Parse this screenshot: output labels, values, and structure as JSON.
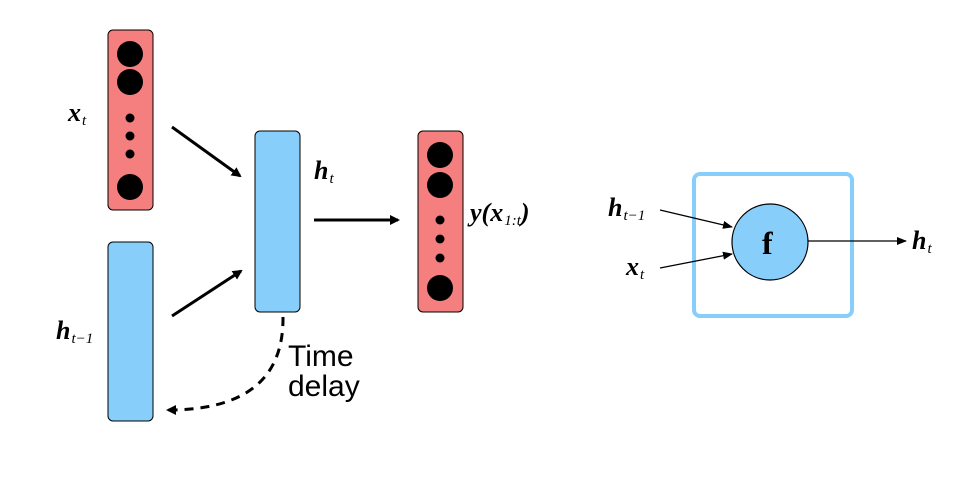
{
  "labels": {
    "x_t": {
      "main": "x",
      "sub": "t"
    },
    "h_t_minus_1": {
      "main": "h",
      "sub": "t−1"
    },
    "h_t": {
      "main": "h",
      "sub": "t"
    },
    "y_output": {
      "prefix": "y(",
      "main": "x",
      "sub": "1:t",
      "suffix": ")"
    },
    "time_delay": "Time\ndelay",
    "cell_h_t_minus_1": {
      "main": "h",
      "sub": "t−1"
    },
    "cell_x_t": {
      "main": "x",
      "sub": "t"
    },
    "cell_h_t": {
      "main": "h",
      "sub": "t"
    },
    "function": "f"
  },
  "colors": {
    "input_vector": "#f57f7f",
    "hidden_vector": "#87cefa",
    "cell_border": "#87cefa",
    "circle_fill": "#87cefa",
    "stroke": "#000000"
  }
}
